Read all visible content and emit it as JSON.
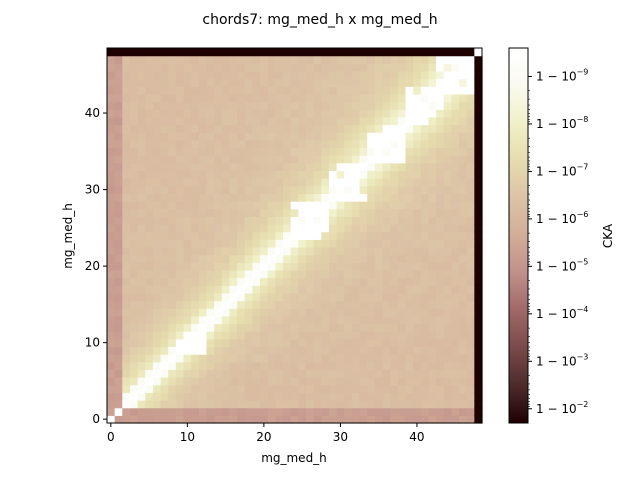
{
  "chart_data": {
    "type": "heatmap",
    "title": "chords7: mg_med_h x mg_med_h",
    "xlabel": "mg_med_h",
    "ylabel": "mg_med_h",
    "n": 49,
    "xlim": [
      -0.5,
      48.5
    ],
    "ylim": [
      -0.5,
      48.5
    ],
    "x_ticks": [
      0,
      10,
      20,
      30,
      40
    ],
    "y_ticks": [
      0,
      10,
      20,
      30,
      40
    ],
    "grid": false,
    "colorbar": {
      "label": "CKA",
      "scale": "log of (1 - CKA)",
      "ticks": [
        {
          "exp": -9,
          "label_base": "1 − 10",
          "label_exp": "−9"
        },
        {
          "exp": -8,
          "label_base": "1 − 10",
          "label_exp": "−8"
        },
        {
          "exp": -7,
          "label_base": "1 − 10",
          "label_exp": "−7"
        },
        {
          "exp": -6,
          "label_base": "1 − 10",
          "label_exp": "−6"
        },
        {
          "exp": -5,
          "label_base": "1 − 10",
          "label_exp": "−5"
        },
        {
          "exp": -4,
          "label_base": "1 − 10",
          "label_exp": "−4"
        },
        {
          "exp": -3,
          "label_base": "1 − 10",
          "label_exp": "−3"
        },
        {
          "exp": -2,
          "label_base": "1 − 10",
          "label_exp": "−2"
        }
      ],
      "range_exp": [
        -9.6,
        -1.7
      ],
      "colormap": "pink",
      "colors": [
        "#1e0000",
        "#4d2b2b",
        "#7a4a4a",
        "#a06868",
        "#c0908a",
        "#d2ad98",
        "#dcc3a6",
        "#e6dcae",
        "#f0f0c8",
        "#fafaf0",
        "#ffffff"
      ]
    },
    "structure": {
      "row_48_and_col_48": "near 0 (darkest)",
      "cell_48_48": "1 (white)",
      "row_col_0_1": "about 1 - 10^-5.5",
      "diagonal": "1 (white)",
      "near_diagonal_blocks": [
        [
          9,
          12
        ],
        [
          24,
          28
        ],
        [
          29,
          33
        ],
        [
          34,
          38
        ],
        [
          39,
          43
        ],
        [
          43,
          47
        ]
      ],
      "background": "about 1 - 10^-6 to 1 - 10^-7"
    }
  }
}
